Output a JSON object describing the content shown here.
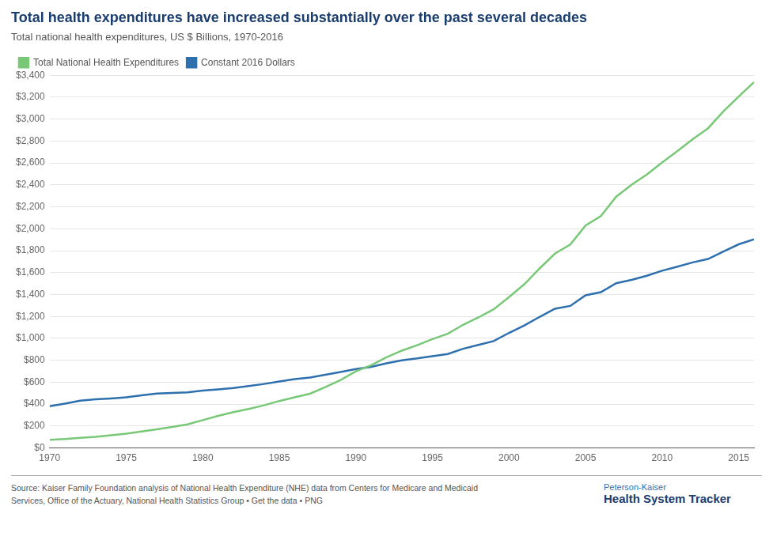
{
  "chart_data": {
    "type": "line",
    "title": "Total health expenditures have increased substantially over the past several decades",
    "subtitle": "Total national health expenditures, US $ Billions, 1970-2016",
    "annotations": [
      "Source: Kaiser Family Foundation analysis of National Health Expenditure (NHE) data from Centers for Medicare and Medicaid\nServices, Office of the Actuary, National Health Statistics Group • Get the data • PNG",
      "Peterson-Kaiser",
      "Health System Tracker"
    ],
    "x": [
      1970,
      1971,
      1972,
      1973,
      1974,
      1975,
      1976,
      1977,
      1978,
      1979,
      1980,
      1981,
      1982,
      1983,
      1984,
      1985,
      1986,
      1987,
      1988,
      1989,
      1990,
      1991,
      1992,
      1993,
      1994,
      1995,
      1996,
      1997,
      1998,
      1999,
      2000,
      2001,
      2002,
      2003,
      2004,
      2005,
      2006,
      2007,
      2008,
      2009,
      2010,
      2011,
      2012,
      2013,
      2014,
      2015,
      2016
    ],
    "series": [
      {
        "name": "Total National Health Expenditures",
        "color": "#78c878",
        "values": [
          74.6,
          82.0,
          92.7,
          102.5,
          116.2,
          130.7,
          149.6,
          170.4,
          192.4,
          215.9,
          253.9,
          292.4,
          326.5,
          355.7,
          389.5,
          428.7,
          462.4,
          494.7,
          555.0,
          620.0,
          699.5,
          754.9,
          827.0,
          888.1,
          937.2,
          993.3,
          1042.4,
          1124.0,
          1190.8,
          1264.9,
          1377.2,
          1493.3,
          1638.0,
          1773.2,
          1855.4,
          2029.9,
          2115.5,
          2293.0,
          2401.3,
          2494.0,
          2604.1,
          2708.5,
          2817.3,
          2916.7,
          3071.0,
          3205.6,
          3337.2
        ]
      },
      {
        "name": "Constant 2016 Dollars",
        "color": "#2e6fad",
        "values": [
          381,
          405,
          432,
          445,
          452,
          462,
          481,
          497,
          502,
          508,
          524,
          535,
          547,
          565,
          584,
          606,
          628,
          643,
          668,
          693,
          720,
          740,
          773,
          800,
          817,
          838,
          857,
          905,
          940,
          975,
          1050,
          1118,
          1196,
          1270,
          1296,
          1393,
          1421,
          1503,
          1533,
          1571,
          1617,
          1654,
          1693,
          1724,
          1793,
          1858,
          1903
        ]
      }
    ],
    "xlim": [
      1970,
      2016
    ],
    "xticks": [
      1970,
      1975,
      1980,
      1985,
      1990,
      1995,
      2000,
      2005,
      2010,
      2015
    ],
    "ylim": [
      0,
      3400
    ],
    "yticks": [
      {
        "value": 0,
        "label": "$0"
      },
      {
        "value": 200,
        "label": "$200"
      },
      {
        "value": 400,
        "label": "$400"
      },
      {
        "value": 600,
        "label": "$600"
      },
      {
        "value": 800,
        "label": "$800"
      },
      {
        "value": 1000,
        "label": "$1,000"
      },
      {
        "value": 1200,
        "label": "$1,200"
      },
      {
        "value": 1400,
        "label": "$1,400"
      },
      {
        "value": 1600,
        "label": "$1,600"
      },
      {
        "value": 1800,
        "label": "$1,800"
      },
      {
        "value": 2000,
        "label": "$2,000"
      },
      {
        "value": 2200,
        "label": "$2,200"
      },
      {
        "value": 2400,
        "label": "$2,400"
      },
      {
        "value": 2600,
        "label": "$2,600"
      },
      {
        "value": 2800,
        "label": "$2,800"
      },
      {
        "value": 3000,
        "label": "$3,000"
      },
      {
        "value": 3200,
        "label": "$3,200"
      },
      {
        "value": 3400,
        "label": "$3,400"
      }
    ],
    "grid": "y",
    "legend": "top"
  }
}
